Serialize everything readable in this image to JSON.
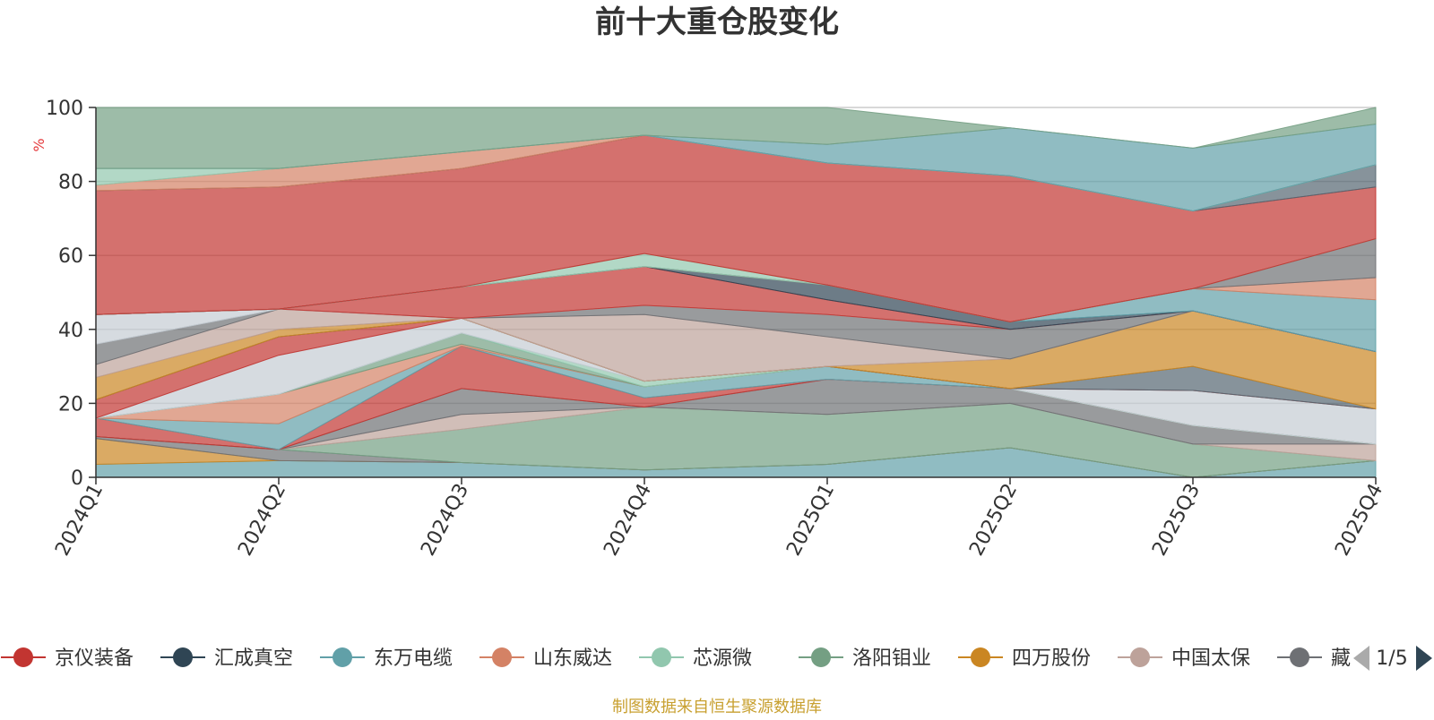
{
  "chart_data": {
    "type": "area",
    "title": "前十大重仓股变化",
    "ylabel": "%",
    "ylim": [
      0,
      100
    ],
    "yticks": [
      0,
      20,
      40,
      60,
      80,
      100
    ],
    "grid": true,
    "categories": [
      "2024Q1",
      "2024Q2",
      "2024Q3",
      "2024Q4",
      "2025Q1",
      "2025Q2",
      "2025Q3",
      "2025Q4"
    ],
    "legend": {
      "position": "bottom",
      "page": "1/5",
      "visible_entries": [
        "京仪装备",
        "汇成真空",
        "东万电缆",
        "山东威达",
        "芯源微",
        "洛阳钼业",
        "四万股份",
        "中国太保",
        "藏"
      ]
    },
    "source_note": "制图数据来自恒生聚源数据库",
    "colors": {
      "red": "#c23531",
      "navy": "#2f4554",
      "teal": "#61a0a8",
      "salmon": "#d48265",
      "mint": "#91c7ae",
      "green": "#749f83",
      "orange": "#ca8622",
      "rose": "#bda29a",
      "gray": "#6e7074",
      "slate": "#546570",
      "ice": "#c4ccd3"
    },
    "layers": [
      {
        "color": "teal",
        "lower": [
          0,
          0,
          0,
          0,
          0,
          0,
          0,
          0
        ],
        "upper": [
          3.5,
          4.5,
          4,
          2,
          3.5,
          8,
          0,
          4.5
        ]
      },
      {
        "color": "orange",
        "lower": [
          3.5,
          4.5,
          4,
          2,
          3.5,
          8,
          0,
          4.5
        ],
        "upper": [
          10.5,
          4.5,
          4,
          2,
          3.5,
          8,
          0,
          4.5
        ]
      },
      {
        "color": "gray",
        "lower": [
          10.5,
          4.5,
          4,
          2,
          3.5,
          8,
          0,
          4.5
        ],
        "upper": [
          11,
          7.5,
          4,
          2,
          3.5,
          8,
          0,
          4.5
        ]
      },
      {
        "color": "green",
        "lower": [
          11,
          7.5,
          4,
          2,
          3.5,
          8,
          0,
          4.5
        ],
        "upper": [
          11,
          7.5,
          13,
          19,
          17,
          20,
          9,
          4.5
        ]
      },
      {
        "color": "rose",
        "lower": [
          11,
          7.5,
          13,
          19,
          17,
          20,
          9,
          4.5
        ],
        "upper": [
          11,
          7.5,
          17,
          19,
          17,
          20,
          9,
          9
        ]
      },
      {
        "color": "gray",
        "lower": [
          11,
          7.5,
          17,
          19,
          17,
          20,
          9,
          9
        ],
        "upper": [
          11,
          7.5,
          24,
          19,
          26.5,
          24,
          14,
          9
        ]
      },
      {
        "color": "red",
        "lower": [
          11,
          7.5,
          24,
          19,
          26.5,
          24,
          14,
          9
        ],
        "upper": [
          16,
          7.5,
          35.5,
          21.5,
          26.5,
          24,
          14,
          9
        ]
      },
      {
        "color": "teal",
        "lower": [
          16,
          7.5,
          35.5,
          21.5,
          26.5,
          24,
          14,
          9
        ],
        "upper": [
          16,
          14.5,
          35.5,
          24.5,
          30,
          24,
          14,
          9
        ]
      },
      {
        "color": "salmon",
        "lower": [
          16,
          14.5,
          35.5,
          24.5,
          30,
          24,
          14,
          9
        ],
        "upper": [
          16,
          22.5,
          36,
          24.5,
          30,
          24,
          14,
          9
        ]
      },
      {
        "color": "green",
        "lower": [
          16,
          22.5,
          36,
          24.5,
          30,
          24,
          14,
          9
        ],
        "upper": [
          16,
          22.5,
          39,
          24.5,
          30,
          24,
          14,
          9
        ]
      },
      {
        "color": "mint",
        "lower": [
          16,
          22.5,
          39,
          24.5,
          30,
          24,
          14,
          9
        ],
        "upper": [
          16,
          22.5,
          39,
          26,
          30,
          24,
          14,
          9
        ]
      },
      {
        "color": "ice",
        "lower": [
          16,
          22.5,
          39,
          26,
          30,
          24,
          14,
          9
        ],
        "upper": [
          16,
          33,
          43,
          26,
          30,
          24,
          23.5,
          18.5
        ]
      },
      {
        "color": "red",
        "lower": [
          16,
          33,
          43,
          26,
          30,
          24,
          23.5,
          18.5
        ],
        "upper": [
          21,
          38,
          43,
          26,
          30,
          24,
          23.5,
          18.5
        ]
      },
      {
        "color": "slate",
        "lower": [
          21,
          38,
          43,
          26,
          30,
          24,
          23.5,
          18.5
        ],
        "upper": [
          21,
          38,
          43,
          26,
          30,
          24,
          30,
          18.5
        ]
      },
      {
        "color": "orange",
        "lower": [
          21,
          38,
          43,
          26,
          30,
          24,
          30,
          18.5
        ],
        "upper": [
          27,
          40,
          43,
          26,
          30,
          32,
          45,
          34
        ]
      },
      {
        "color": "rose",
        "lower": [
          27,
          40,
          43,
          26,
          30,
          32,
          45,
          34
        ],
        "upper": [
          30.5,
          45.5,
          43,
          44,
          38,
          32,
          45,
          34
        ]
      },
      {
        "color": "gray",
        "lower": [
          30.5,
          45.5,
          43,
          44,
          38,
          32,
          45,
          34
        ],
        "upper": [
          36,
          45.5,
          43,
          46.5,
          44,
          40,
          45,
          34
        ]
      },
      {
        "color": "ice",
        "lower": [
          36,
          45.5,
          43,
          46.5,
          44,
          40,
          45,
          34
        ],
        "upper": [
          44,
          45.5,
          43,
          46.5,
          44,
          40,
          45,
          34
        ]
      },
      {
        "color": "red",
        "lower": [
          44,
          45.5,
          43,
          46.5,
          44,
          40,
          45,
          34
        ],
        "upper": [
          44,
          45.5,
          51.5,
          57,
          48,
          40,
          45,
          34
        ]
      },
      {
        "color": "navy",
        "lower": [
          44,
          45.5,
          51.5,
          57,
          48,
          40,
          45,
          34
        ],
        "upper": [
          44,
          45.5,
          51.5,
          57,
          52,
          42,
          45,
          34
        ]
      },
      {
        "color": "teal",
        "lower": [
          44,
          45.5,
          51.5,
          57,
          52,
          42,
          45,
          34
        ],
        "upper": [
          44,
          45.5,
          51.5,
          57,
          52,
          42,
          51,
          48
        ]
      },
      {
        "color": "salmon",
        "lower": [
          44,
          45.5,
          51.5,
          57,
          52,
          42,
          51,
          48
        ],
        "upper": [
          44,
          45.5,
          51.5,
          57,
          52,
          42,
          51,
          54
        ]
      },
      {
        "color": "gray",
        "lower": [
          44,
          45.5,
          51.5,
          57,
          52,
          42,
          51,
          54
        ],
        "upper": [
          44,
          45.5,
          51.5,
          57,
          52,
          42,
          51,
          64.5
        ]
      },
      {
        "color": "mint",
        "lower": [
          44,
          45.5,
          51.5,
          57,
          52,
          42,
          51,
          64.5
        ],
        "upper": [
          44,
          45.5,
          51.5,
          60.5,
          52,
          42,
          51,
          64.5
        ]
      },
      {
        "color": "red",
        "lower": [
          44,
          45.5,
          51.5,
          60.5,
          52,
          42,
          51,
          64.5
        ],
        "upper": [
          77.5,
          78.5,
          83.5,
          92.5,
          85,
          81.5,
          72,
          78.5
        ]
      },
      {
        "color": "slate",
        "lower": [
          77.5,
          78.5,
          83.5,
          92.5,
          85,
          81.5,
          72,
          78.5
        ],
        "upper": [
          77.5,
          78.5,
          83.5,
          92.5,
          85,
          81.5,
          72,
          84.5
        ]
      },
      {
        "color": "salmon",
        "lower": [
          77.5,
          78.5,
          83.5,
          92.5,
          85,
          81.5,
          72,
          84.5
        ],
        "upper": [
          79,
          83.5,
          88,
          92.5,
          85,
          81.5,
          72,
          84.5
        ]
      },
      {
        "color": "mint",
        "lower": [
          79,
          83.5,
          88,
          92.5,
          85,
          81.5,
          72,
          84.5
        ],
        "upper": [
          83.5,
          83.5,
          88,
          92.5,
          85,
          81.5,
          72,
          84.5
        ]
      },
      {
        "color": "teal",
        "lower": [
          83.5,
          83.5,
          88,
          92.5,
          85,
          81.5,
          72,
          84.5
        ],
        "upper": [
          83.5,
          83.5,
          88,
          92.5,
          90,
          94.5,
          89,
          95.5
        ]
      },
      {
        "color": "green",
        "lower": [
          83.5,
          83.5,
          88,
          92.5,
          90,
          94.5,
          89,
          95.5
        ],
        "upper": [
          100,
          100,
          100,
          100,
          100,
          94.5,
          89,
          100
        ]
      }
    ]
  }
}
